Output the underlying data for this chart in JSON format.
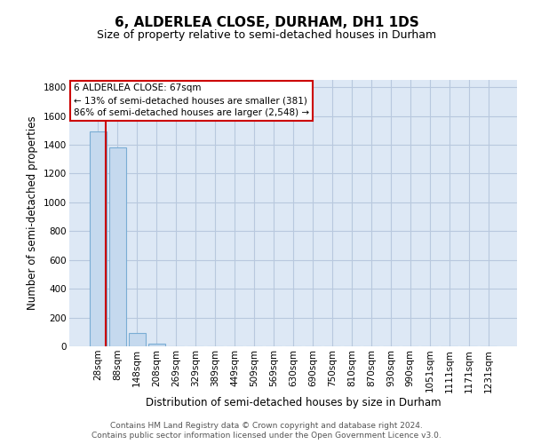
{
  "title": "6, ALDERLEA CLOSE, DURHAM, DH1 1DS",
  "subtitle": "Size of property relative to semi-detached houses in Durham",
  "xlabel": "Distribution of semi-detached houses by size in Durham",
  "ylabel": "Number of semi-detached properties",
  "footnote1": "Contains HM Land Registry data © Crown copyright and database right 2024.",
  "footnote2": "Contains public sector information licensed under the Open Government Licence v3.0.",
  "bar_labels": [
    "28sqm",
    "88sqm",
    "148sqm",
    "208sqm",
    "269sqm",
    "329sqm",
    "389sqm",
    "449sqm",
    "509sqm",
    "569sqm",
    "630sqm",
    "690sqm",
    "750sqm",
    "810sqm",
    "870sqm",
    "930sqm",
    "990sqm",
    "1051sqm",
    "1111sqm",
    "1171sqm",
    "1231sqm"
  ],
  "bar_values": [
    1490,
    1380,
    95,
    20,
    0,
    0,
    0,
    0,
    0,
    0,
    0,
    0,
    0,
    0,
    0,
    0,
    0,
    0,
    0,
    0,
    0
  ],
  "bar_color": "#c5d9ee",
  "bar_edge_color": "#7aadd4",
  "marker_color": "#cc0000",
  "annotation_box_edge": "#cc0000",
  "ylim": [
    0,
    1850
  ],
  "yticks": [
    0,
    200,
    400,
    600,
    800,
    1000,
    1200,
    1400,
    1600,
    1800
  ],
  "background_color": "#ffffff",
  "plot_bg_color": "#dde8f5",
  "grid_color": "#b8c8de",
  "title_fontsize": 11,
  "subtitle_fontsize": 9,
  "axis_label_fontsize": 8.5,
  "tick_fontsize": 7.5,
  "annotation_fontsize": 7.5,
  "footnote_fontsize": 6.5
}
